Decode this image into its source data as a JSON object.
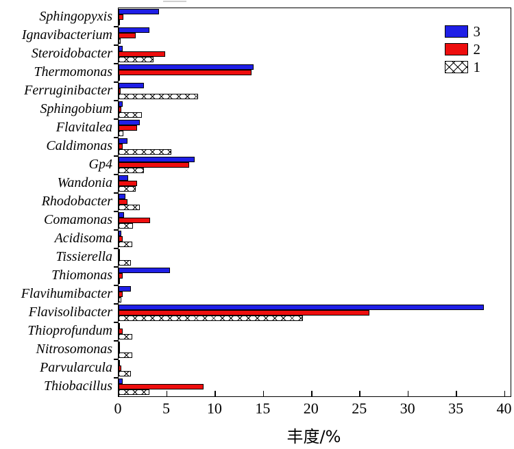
{
  "figure": {
    "background": "#ffffff",
    "axis_color": "#000000"
  },
  "legend": {
    "position": "top-right",
    "items": [
      {
        "label": "3",
        "color": "#1f1fe6",
        "pattern": "solid"
      },
      {
        "label": "2",
        "color": "#ee0e0e",
        "pattern": "solid"
      },
      {
        "label": "1",
        "color": "#ffffff",
        "pattern": "crosshatch"
      }
    ]
  },
  "chart_data": {
    "type": "bar",
    "orientation": "horizontal",
    "title": "",
    "xlabel": "丰度/%",
    "ylabel": "",
    "xlim": [
      0,
      40
    ],
    "xticks": [
      0,
      5,
      10,
      15,
      20,
      25,
      30,
      35,
      40
    ],
    "grid": false,
    "legend_position": "top-right",
    "categories": [
      "Sphingopyxis",
      "Ignavibacterium",
      "Steroidobacter",
      "Thermomonas",
      "Ferruginibacter",
      "Sphingobium",
      "Flavitalea",
      "Caldimonas",
      "Gp4",
      "Wandonia",
      "Rhodobacter",
      "Comamonas",
      "Acidisoma",
      "Tissierella",
      "Thiomonas",
      "Flavihumibacter",
      "Flavisolibacter",
      "Thioprofundum",
      "Nitrosomonas",
      "Parvularcula",
      "Thiobacillus"
    ],
    "series": [
      {
        "name": "3",
        "color": "#1f1fe6",
        "pattern": "solid",
        "values": [
          4.2,
          3.2,
          0.4,
          14.0,
          2.6,
          0.4,
          2.2,
          0.9,
          7.9,
          1.0,
          0.7,
          0.6,
          0.3,
          0.15,
          5.3,
          1.3,
          37.8,
          0.15,
          0.1,
          0.1,
          0.4
        ]
      },
      {
        "name": "2",
        "color": "#ee0e0e",
        "pattern": "solid",
        "values": [
          0.5,
          1.8,
          4.8,
          13.8,
          0.2,
          0.3,
          1.9,
          0.4,
          7.3,
          1.9,
          0.9,
          3.3,
          0.4,
          0.1,
          0.4,
          0.4,
          26.0,
          0.4,
          0.1,
          0.3,
          8.8
        ]
      },
      {
        "name": "1",
        "color": "#ffffff",
        "pattern": "crosshatch",
        "values": [
          0.15,
          0.2,
          3.6,
          0.1,
          8.2,
          2.4,
          0.5,
          5.5,
          2.6,
          1.8,
          2.2,
          1.5,
          1.4,
          1.3,
          0.15,
          0.3,
          19.1,
          1.4,
          1.4,
          1.3,
          3.2
        ]
      }
    ]
  }
}
